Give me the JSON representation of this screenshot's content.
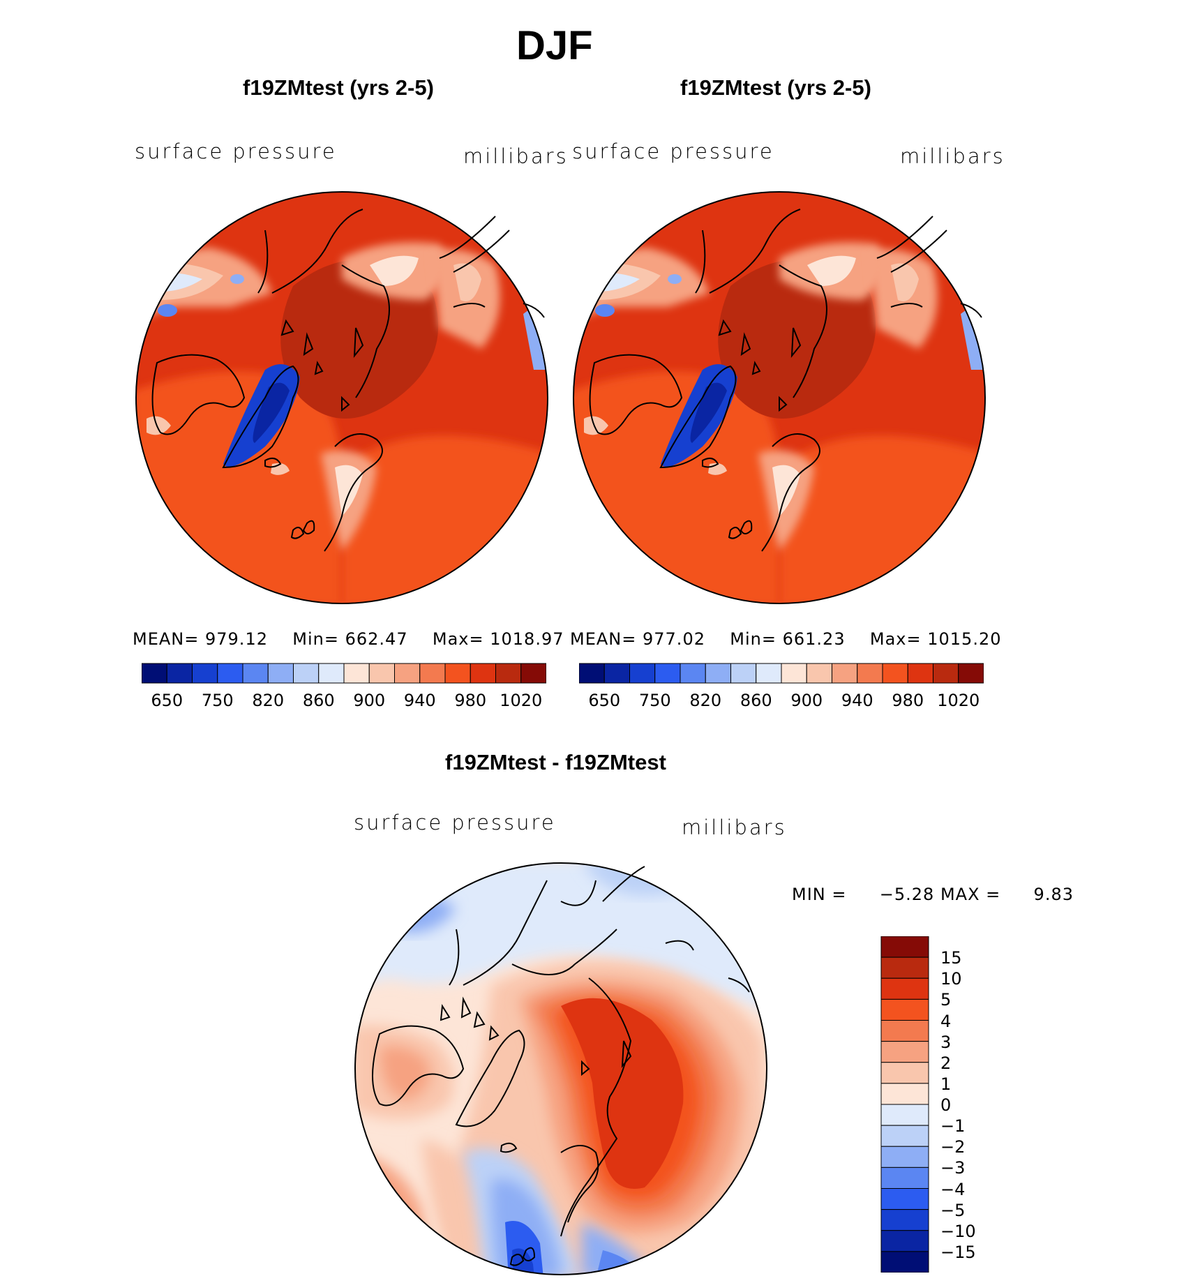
{
  "figure": {
    "title": "DJF",
    "panels": [
      {
        "title": "f19ZMtest (yrs 2-5)",
        "variable": "surface pressure",
        "units": "millibars",
        "stats": {
          "mean_label": "MEAN=",
          "mean": "979.12",
          "min_label": "Min=",
          "min": "662.47",
          "max_label": "Max=",
          "max": "1018.97"
        },
        "colorbar_ticks": [
          "650",
          "750",
          "820",
          "860",
          "900",
          "940",
          "980",
          "1020"
        ]
      },
      {
        "title": "f19ZMtest (yrs 2-5)",
        "variable": "surface pressure",
        "units": "millibars",
        "stats": {
          "mean_label": "MEAN=",
          "mean": "977.02",
          "min_label": "Min=",
          "min": "661.23",
          "max_label": "Max=",
          "max": "1015.20"
        },
        "colorbar_ticks": [
          "650",
          "750",
          "820",
          "860",
          "900",
          "940",
          "980",
          "1020"
        ]
      }
    ],
    "diff_panel": {
      "title": "f19ZMtest - f19ZMtest",
      "variable": "surface pressure",
      "units": "millibars",
      "stats": {
        "min_label": "MIN =",
        "min": "−5.28",
        "max_label": "MAX =",
        "max": "9.83"
      },
      "colorbar_ticks": [
        "15",
        "10",
        "5",
        "4",
        "3",
        "2",
        "1",
        "0",
        "−1",
        "−2",
        "−3",
        "−4",
        "−5",
        "−10",
        "−15"
      ]
    }
  },
  "colors": {
    "abs_colorbar": [
      "#000e75",
      "#0a25a3",
      "#1640d0",
      "#2c5cf0",
      "#5b86f2",
      "#8eaef5",
      "#bcd1f7",
      "#dfeafb",
      "#fde5d7",
      "#f9c6ad",
      "#f6a281",
      "#f37a4f",
      "#f3531f",
      "#de3411",
      "#b92a0f",
      "#850b06"
    ],
    "diff_colorbar": [
      "#850b06",
      "#b92a0f",
      "#de3411",
      "#f3531f",
      "#f37a4f",
      "#f6a281",
      "#f9c6ad",
      "#fde5d7",
      "#dfeafb",
      "#bcd1f7",
      "#8eaef5",
      "#5b86f2",
      "#2c5cf0",
      "#1640d0",
      "#0a25a3",
      "#000e75"
    ],
    "coast": "#000000"
  }
}
